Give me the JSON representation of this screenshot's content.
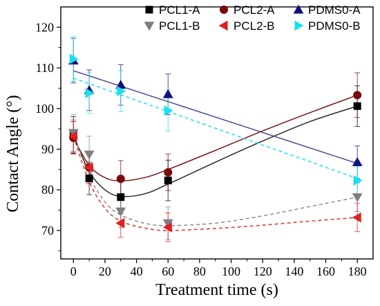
{
  "chart_data": {
    "type": "scatter",
    "title": "",
    "xlabel": "Treatment time (s)",
    "ylabel": "Contact Angle (°)",
    "xlim": [
      -8,
      190
    ],
    "ylim": [
      63,
      125
    ],
    "xticks": [
      0,
      20,
      40,
      60,
      80,
      100,
      120,
      140,
      160,
      180
    ],
    "yticks": [
      70,
      80,
      90,
      100,
      110,
      120
    ],
    "grid": false,
    "legend": "top, 3 columns",
    "series": [
      {
        "name": "PCL1-A",
        "marker": "square",
        "color": "#000000",
        "line_color": "#2a2a2a",
        "dashed": false,
        "x": [
          0,
          10,
          30,
          60,
          180
        ],
        "y": [
          93.5,
          82.8,
          78.2,
          82.3,
          100.6
        ],
        "err": [
          4.5,
          4.0,
          4.0,
          5.0,
          5.0
        ],
        "fit": [
          [
            0,
            93.5
          ],
          [
            10,
            84.5
          ],
          [
            20,
            80.0
          ],
          [
            30,
            78.4
          ],
          [
            45,
            79.0
          ],
          [
            60,
            81.4
          ],
          [
            90,
            86.8
          ],
          [
            120,
            92.0
          ],
          [
            150,
            96.8
          ],
          [
            180,
            100.6
          ]
        ]
      },
      {
        "name": "PCL2-A",
        "marker": "circle",
        "color": "#7a0b0b",
        "line_color": "#7a1515",
        "dashed": false,
        "x": [
          0,
          10,
          30,
          60,
          180
        ],
        "y": [
          92.8,
          85.5,
          82.7,
          84.3,
          103.3
        ],
        "err": [
          4.0,
          4.0,
          4.5,
          4.5,
          5.5
        ],
        "fit": [
          [
            0,
            92.8
          ],
          [
            10,
            86.0
          ],
          [
            20,
            83.0
          ],
          [
            30,
            82.2
          ],
          [
            45,
            83.0
          ],
          [
            60,
            85.0
          ],
          [
            90,
            89.7
          ],
          [
            120,
            94.5
          ],
          [
            150,
            99.0
          ],
          [
            180,
            103.3
          ]
        ]
      },
      {
        "name": "PDMS0-A",
        "marker": "triangle-up",
        "color": "#101080",
        "line_color": "#4a4a90",
        "dashed": false,
        "x": [
          0,
          10,
          30,
          60,
          180
        ],
        "y": [
          111.8,
          104.5,
          105.8,
          103.5,
          86.8
        ],
        "err": [
          5.5,
          5.0,
          5.0,
          5.0,
          4.0
        ],
        "fit": [
          [
            0,
            109.3
          ],
          [
            180,
            86.5
          ]
        ]
      },
      {
        "name": "PCL1-B",
        "marker": "triangle-down",
        "color": "#7f7f7f",
        "line_color": "#8a8a8a",
        "dashed": true,
        "x": [
          0,
          10,
          30,
          60,
          180
        ],
        "y": [
          94.0,
          88.7,
          74.7,
          71.8,
          78.2
        ],
        "err": [
          4.5,
          4.5,
          4.0,
          4.0,
          3.5
        ],
        "fit": [
          [
            0,
            94.0
          ],
          [
            10,
            83.5
          ],
          [
            20,
            77.0
          ],
          [
            30,
            73.8
          ],
          [
            45,
            71.8
          ],
          [
            60,
            71.2
          ],
          [
            90,
            71.8
          ],
          [
            120,
            73.6
          ],
          [
            150,
            75.9
          ],
          [
            180,
            78.2
          ]
        ]
      },
      {
        "name": "PCL2-B",
        "marker": "triangle-left",
        "color": "#e02020",
        "line_color": "#e03030",
        "dashed": true,
        "x": [
          0,
          10,
          30,
          60,
          180
        ],
        "y": [
          93.2,
          85.5,
          71.8,
          70.8,
          73.2
        ],
        "err": [
          4.0,
          4.0,
          3.5,
          3.5,
          3.5
        ],
        "fit": [
          [
            0,
            93.2
          ],
          [
            10,
            82.0
          ],
          [
            20,
            75.5
          ],
          [
            30,
            72.3
          ],
          [
            45,
            70.6
          ],
          [
            60,
            70.0
          ],
          [
            90,
            70.5
          ],
          [
            120,
            71.3
          ],
          [
            150,
            72.3
          ],
          [
            180,
            73.2
          ]
        ]
      },
      {
        "name": "PDMS0-B",
        "marker": "triangle-right",
        "color": "#19e0f0",
        "line_color": "#19e0f0",
        "dashed": true,
        "x": [
          0,
          10,
          30,
          60,
          180
        ],
        "y": [
          112.2,
          103.8,
          104.3,
          99.5,
          82.3
        ],
        "err": [
          5.5,
          5.0,
          5.0,
          5.0,
          3.5
        ],
        "fit": [
          [
            0,
            107.5
          ],
          [
            180,
            82.8
          ]
        ]
      }
    ]
  }
}
